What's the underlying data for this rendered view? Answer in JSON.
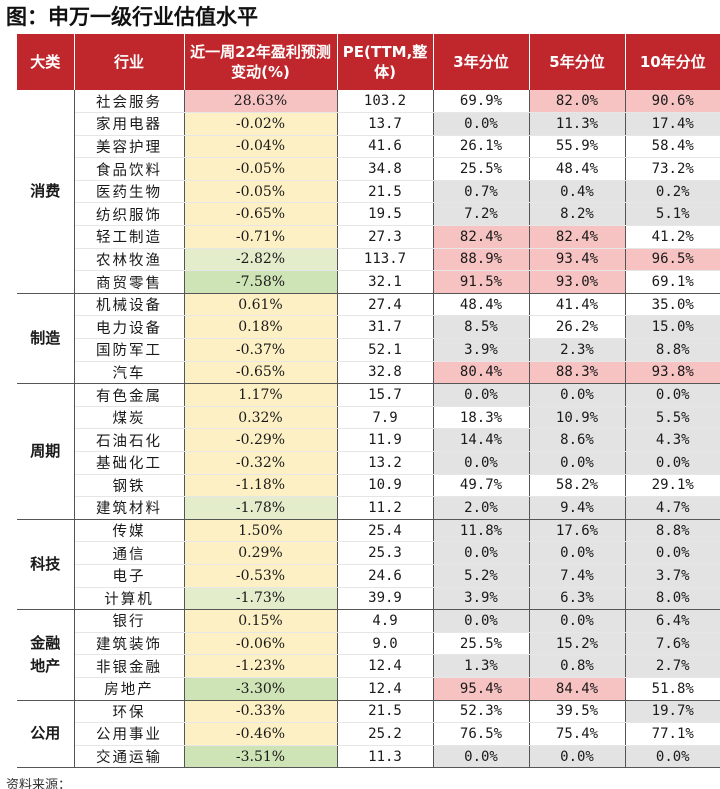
{
  "title": "图：申万一级行业估值水平",
  "headers": {
    "category": "大类",
    "industry": "行业",
    "change": "近一周22年盈利预测变动(%)",
    "pe": "PE(TTM,整体)",
    "p3": "3年分位",
    "p5": "5年分位",
    "p10": "10年分位"
  },
  "groups": [
    {
      "name": "消费",
      "rows": [
        {
          "industry": "社会服务",
          "change": "28.63%",
          "pe": "103.2",
          "p3": "69.9%",
          "p5": "82.0%",
          "p10": "90.6%",
          "change_color": "#f6c2c2",
          "c3": "#ffffff",
          "c5": "#f6c2c2",
          "c10": "#f6c2c2"
        },
        {
          "industry": "家用电器",
          "change": "-0.02%",
          "pe": "13.7",
          "p3": "0.0%",
          "p5": "11.3%",
          "p10": "17.4%",
          "change_color": "#fcf0c4",
          "c3": "#e3e3e3",
          "c5": "#e3e3e3",
          "c10": "#e3e3e3"
        },
        {
          "industry": "美容护理",
          "change": "-0.04%",
          "pe": "41.6",
          "p3": "26.1%",
          "p5": "55.9%",
          "p10": "58.4%",
          "change_color": "#fcf0c4",
          "c3": "#ffffff",
          "c5": "#ffffff",
          "c10": "#ffffff"
        },
        {
          "industry": "食品饮料",
          "change": "-0.05%",
          "pe": "34.8",
          "p3": "25.5%",
          "p5": "48.4%",
          "p10": "73.2%",
          "change_color": "#fcf0c4",
          "c3": "#ffffff",
          "c5": "#ffffff",
          "c10": "#ffffff"
        },
        {
          "industry": "医药生物",
          "change": "-0.05%",
          "pe": "21.5",
          "p3": "0.7%",
          "p5": "0.4%",
          "p10": "0.2%",
          "change_color": "#fcf0c4",
          "c3": "#e3e3e3",
          "c5": "#e3e3e3",
          "c10": "#e3e3e3"
        },
        {
          "industry": "纺织服饰",
          "change": "-0.65%",
          "pe": "19.5",
          "p3": "7.2%",
          "p5": "8.2%",
          "p10": "5.1%",
          "change_color": "#fcf0c4",
          "c3": "#e3e3e3",
          "c5": "#e3e3e3",
          "c10": "#e3e3e3"
        },
        {
          "industry": "轻工制造",
          "change": "-0.71%",
          "pe": "27.3",
          "p3": "82.4%",
          "p5": "82.4%",
          "p10": "41.2%",
          "change_color": "#fcf0c4",
          "c3": "#f6c2c2",
          "c5": "#f6c2c2",
          "c10": "#ffffff"
        },
        {
          "industry": "农林牧渔",
          "change": "-2.82%",
          "pe": "113.7",
          "p3": "88.9%",
          "p5": "93.4%",
          "p10": "96.5%",
          "change_color": "#e3eccb",
          "c3": "#f6c2c2",
          "c5": "#f6c2c2",
          "c10": "#f6c2c2"
        },
        {
          "industry": "商贸零售",
          "change": "-7.58%",
          "pe": "32.1",
          "p3": "91.5%",
          "p5": "93.0%",
          "p10": "69.1%",
          "change_color": "#cfe4b6",
          "c3": "#f6c2c2",
          "c5": "#f6c2c2",
          "c10": "#ffffff"
        }
      ]
    },
    {
      "name": "制造",
      "rows": [
        {
          "industry": "机械设备",
          "change": "0.61%",
          "pe": "27.4",
          "p3": "48.4%",
          "p5": "41.4%",
          "p10": "35.0%",
          "change_color": "#fcf0c4",
          "c3": "#ffffff",
          "c5": "#ffffff",
          "c10": "#ffffff"
        },
        {
          "industry": "电力设备",
          "change": "0.18%",
          "pe": "31.7",
          "p3": "8.5%",
          "p5": "26.2%",
          "p10": "15.0%",
          "change_color": "#fcf0c4",
          "c3": "#e3e3e3",
          "c5": "#ffffff",
          "c10": "#e3e3e3"
        },
        {
          "industry": "国防军工",
          "change": "-0.37%",
          "pe": "52.1",
          "p3": "3.9%",
          "p5": "2.3%",
          "p10": "8.8%",
          "change_color": "#fcf0c4",
          "c3": "#e3e3e3",
          "c5": "#e3e3e3",
          "c10": "#e3e3e3"
        },
        {
          "industry": "汽车",
          "change": "-0.65%",
          "pe": "32.8",
          "p3": "80.4%",
          "p5": "88.3%",
          "p10": "93.8%",
          "change_color": "#fcf0c4",
          "c3": "#f6c2c2",
          "c5": "#f6c2c2",
          "c10": "#f6c2c2"
        }
      ]
    },
    {
      "name": "周期",
      "rows": [
        {
          "industry": "有色金属",
          "change": "1.17%",
          "pe": "15.7",
          "p3": "0.0%",
          "p5": "0.0%",
          "p10": "0.0%",
          "change_color": "#fcf0c4",
          "c3": "#e3e3e3",
          "c5": "#e3e3e3",
          "c10": "#e3e3e3"
        },
        {
          "industry": "煤炭",
          "change": "0.32%",
          "pe": "7.9",
          "p3": "18.3%",
          "p5": "10.9%",
          "p10": "5.5%",
          "change_color": "#fcf0c4",
          "c3": "#ffffff",
          "c5": "#e3e3e3",
          "c10": "#e3e3e3"
        },
        {
          "industry": "石油石化",
          "change": "-0.29%",
          "pe": "11.9",
          "p3": "14.4%",
          "p5": "8.6%",
          "p10": "4.3%",
          "change_color": "#fcf0c4",
          "c3": "#e3e3e3",
          "c5": "#e3e3e3",
          "c10": "#e3e3e3"
        },
        {
          "industry": "基础化工",
          "change": "-0.32%",
          "pe": "13.2",
          "p3": "0.0%",
          "p5": "0.0%",
          "p10": "0.0%",
          "change_color": "#fcf0c4",
          "c3": "#e3e3e3",
          "c5": "#e3e3e3",
          "c10": "#e3e3e3"
        },
        {
          "industry": "钢铁",
          "change": "-1.18%",
          "pe": "10.9",
          "p3": "49.7%",
          "p5": "58.2%",
          "p10": "29.1%",
          "change_color": "#fcf0c4",
          "c3": "#ffffff",
          "c5": "#ffffff",
          "c10": "#ffffff"
        },
        {
          "industry": "建筑材料",
          "change": "-1.78%",
          "pe": "11.2",
          "p3": "2.0%",
          "p5": "9.4%",
          "p10": "4.7%",
          "change_color": "#e3eccb",
          "c3": "#e3e3e3",
          "c5": "#e3e3e3",
          "c10": "#e3e3e3"
        }
      ]
    },
    {
      "name": "科技",
      "rows": [
        {
          "industry": "传媒",
          "change": "1.50%",
          "pe": "25.4",
          "p3": "11.8%",
          "p5": "17.6%",
          "p10": "8.8%",
          "change_color": "#fcf0c4",
          "c3": "#e3e3e3",
          "c5": "#e3e3e3",
          "c10": "#e3e3e3"
        },
        {
          "industry": "通信",
          "change": "0.29%",
          "pe": "25.3",
          "p3": "0.0%",
          "p5": "0.0%",
          "p10": "0.0%",
          "change_color": "#fcf0c4",
          "c3": "#e3e3e3",
          "c5": "#e3e3e3",
          "c10": "#e3e3e3"
        },
        {
          "industry": "电子",
          "change": "-0.53%",
          "pe": "24.6",
          "p3": "5.2%",
          "p5": "7.4%",
          "p10": "3.7%",
          "change_color": "#fcf0c4",
          "c3": "#e3e3e3",
          "c5": "#e3e3e3",
          "c10": "#e3e3e3"
        },
        {
          "industry": "计算机",
          "change": "-1.73%",
          "pe": "39.9",
          "p3": "3.9%",
          "p5": "6.3%",
          "p10": "8.0%",
          "change_color": "#e3eccb",
          "c3": "#e3e3e3",
          "c5": "#e3e3e3",
          "c10": "#e3e3e3"
        }
      ]
    },
    {
      "name": "金融地产",
      "rows": [
        {
          "industry": "银行",
          "change": "0.15%",
          "pe": "4.9",
          "p3": "0.0%",
          "p5": "0.0%",
          "p10": "6.4%",
          "change_color": "#fcf0c4",
          "c3": "#e3e3e3",
          "c5": "#e3e3e3",
          "c10": "#e3e3e3"
        },
        {
          "industry": "建筑装饰",
          "change": "-0.06%",
          "pe": "9.0",
          "p3": "25.5%",
          "p5": "15.2%",
          "p10": "7.6%",
          "change_color": "#fcf0c4",
          "c3": "#ffffff",
          "c5": "#e3e3e3",
          "c10": "#e3e3e3"
        },
        {
          "industry": "非银金融",
          "change": "-1.23%",
          "pe": "12.4",
          "p3": "1.3%",
          "p5": "0.8%",
          "p10": "2.7%",
          "change_color": "#fcf0c4",
          "c3": "#e3e3e3",
          "c5": "#e3e3e3",
          "c10": "#e3e3e3"
        },
        {
          "industry": "房地产",
          "change": "-3.30%",
          "pe": "12.4",
          "p3": "95.4%",
          "p5": "84.4%",
          "p10": "51.8%",
          "change_color": "#cfe4b6",
          "c3": "#f6c2c2",
          "c5": "#f6c2c2",
          "c10": "#ffffff"
        }
      ]
    },
    {
      "name": "公用",
      "rows": [
        {
          "industry": "环保",
          "change": "-0.33%",
          "pe": "21.5",
          "p3": "52.3%",
          "p5": "39.5%",
          "p10": "19.7%",
          "change_color": "#fcf0c4",
          "c3": "#ffffff",
          "c5": "#ffffff",
          "c10": "#e3e3e3"
        },
        {
          "industry": "公用事业",
          "change": "-0.46%",
          "pe": "25.2",
          "p3": "76.5%",
          "p5": "75.4%",
          "p10": "77.1%",
          "change_color": "#fcf0c4",
          "c3": "#ffffff",
          "c5": "#ffffff",
          "c10": "#ffffff"
        },
        {
          "industry": "交通运输",
          "change": "-3.51%",
          "pe": "11.3",
          "p3": "0.0%",
          "p5": "0.0%",
          "p10": "0.0%",
          "change_color": "#cfe4b6",
          "c3": "#e3e3e3",
          "c5": "#e3e3e3",
          "c10": "#e3e3e3"
        }
      ]
    }
  ],
  "footer": "资料来源："
}
